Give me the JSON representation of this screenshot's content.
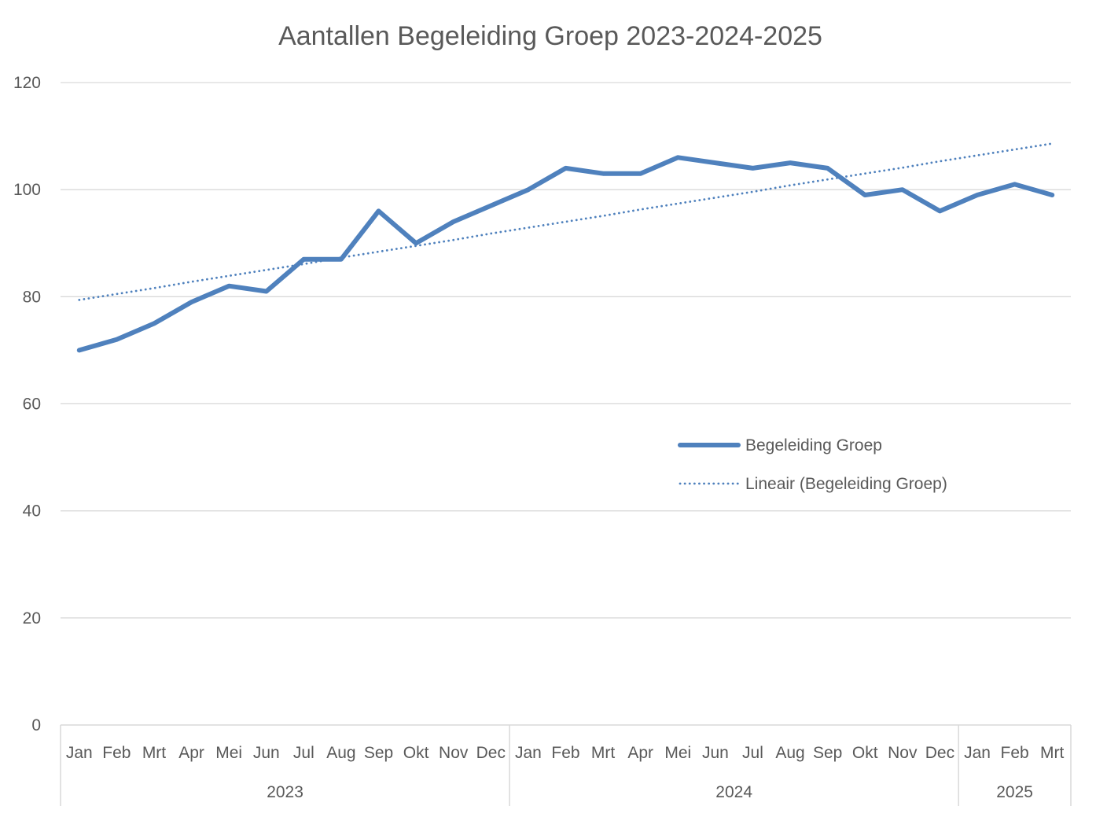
{
  "chart_data": {
    "type": "line",
    "title": "Aantallen Begeleiding Groep 2023-2024-2025",
    "xlabel": "",
    "ylabel": "",
    "ylim": [
      0,
      120
    ],
    "yticks": [
      0,
      20,
      40,
      60,
      80,
      100,
      120
    ],
    "grid": true,
    "legend_position": "right-middle",
    "categories": [
      "Jan",
      "Feb",
      "Mrt",
      "Apr",
      "Mei",
      "Jun",
      "Jul",
      "Aug",
      "Sep",
      "Okt",
      "Nov",
      "Dec",
      "Jan",
      "Feb",
      "Mrt",
      "Apr",
      "Mei",
      "Jun",
      "Jul",
      "Aug",
      "Sep",
      "Okt",
      "Nov",
      "Dec",
      "Jan",
      "Feb",
      "Mrt"
    ],
    "groups": [
      {
        "label": "2023",
        "count": 12
      },
      {
        "label": "2024",
        "count": 12
      },
      {
        "label": "2025",
        "count": 3
      }
    ],
    "series": [
      {
        "name": "Begeleiding Groep",
        "color": "#4f81bd",
        "style": "solid",
        "values": [
          70,
          72,
          75,
          79,
          82,
          81,
          87,
          87,
          96,
          90,
          94,
          97,
          100,
          104,
          103,
          103,
          106,
          105,
          104,
          105,
          104,
          99,
          100,
          96,
          99,
          101,
          99
        ]
      },
      {
        "name": "Lineair (Begeleiding Groep)",
        "color": "#4f81bd",
        "style": "dotted",
        "trendline_of": "Begeleiding Groep",
        "values": [
          79.4,
          80.5,
          81.6,
          82.8,
          83.9,
          85.0,
          86.1,
          87.3,
          88.4,
          89.5,
          90.6,
          91.8,
          92.9,
          94.0,
          95.1,
          96.3,
          97.4,
          98.5,
          99.6,
          100.8,
          101.9,
          103.0,
          104.1,
          105.3,
          106.4,
          107.5,
          108.6
        ]
      }
    ]
  }
}
